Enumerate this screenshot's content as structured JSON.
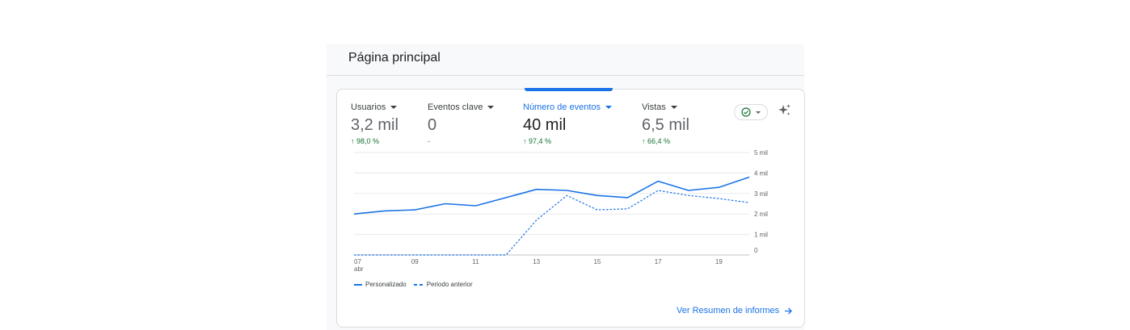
{
  "page": {
    "title": "Página principal"
  },
  "metrics": [
    {
      "label": "Usuarios",
      "value": "3,2 mil",
      "change": "98,0 %",
      "trend": "up"
    },
    {
      "label": "Eventos clave",
      "value": "0",
      "change": "-",
      "trend": "none"
    },
    {
      "label": "Número de eventos",
      "value": "40 mil",
      "change": "97,4 %",
      "trend": "up",
      "active": true
    },
    {
      "label": "Vistas",
      "value": "6,5 mil",
      "change": "66,4 %",
      "trend": "up"
    }
  ],
  "icons": {
    "status": "check-circle-icon",
    "insights": "sparkle-icon",
    "link_arrow": "arrow-right-icon",
    "trend_up": "arrow-up-icon"
  },
  "colors": {
    "accent": "#1a73e8",
    "positive": "#137333"
  },
  "chart_data": {
    "type": "line",
    "x_ticks": [
      "07",
      "09",
      "11",
      "13",
      "15",
      "17",
      "19"
    ],
    "x_month": "abr",
    "y_ticks": [
      "0",
      "1 mil",
      "2 mil",
      "3 mil",
      "4 mil",
      "5 mil"
    ],
    "ylim": [
      0,
      5000
    ],
    "grid": true,
    "legend_position": "bottom-left",
    "x": [
      7,
      8,
      9,
      10,
      11,
      12,
      13,
      14,
      15,
      16,
      17,
      18,
      19,
      20
    ],
    "series": [
      {
        "name": "Personalizado",
        "style": "solid",
        "values": [
          2000,
          2150,
          2200,
          2500,
          2400,
          2800,
          3200,
          3150,
          2900,
          2800,
          3600,
          3150,
          3300,
          3800
        ]
      },
      {
        "name": "Periodo anterior",
        "style": "dashed",
        "values": [
          0,
          0,
          0,
          0,
          0,
          0,
          1700,
          2900,
          2200,
          2250,
          3150,
          2900,
          2750,
          2550
        ]
      }
    ]
  },
  "link": {
    "label": "Ver Resumen de informes"
  }
}
